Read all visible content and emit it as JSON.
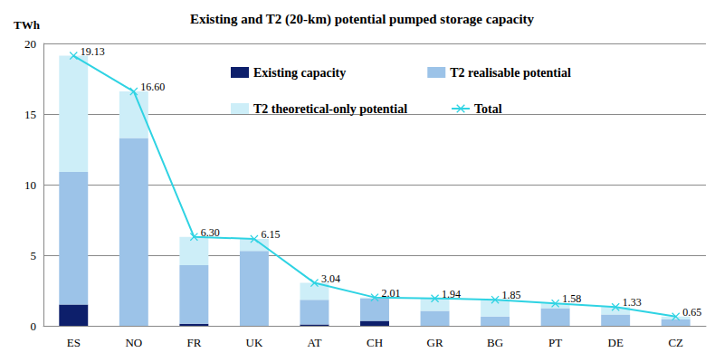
{
  "chart_data": {
    "type": "bar",
    "title": "Existing and T2 (20-km) potential pumped storage capacity",
    "y_label": "TWh",
    "categories": [
      "ES",
      "NO",
      "FR",
      "UK",
      "AT",
      "CH",
      "GR",
      "BG",
      "PT",
      "DE",
      "CZ"
    ],
    "series": [
      {
        "name": "Existing capacity",
        "type": "bar",
        "color": "#0d1f6b",
        "values": [
          1.5,
          0,
          0.15,
          0,
          0.1,
          0.35,
          0,
          0,
          0,
          0,
          0
        ]
      },
      {
        "name": "T2 realisable potential",
        "type": "bar",
        "color": "#9cc3e8",
        "values": [
          9.4,
          13.3,
          4.15,
          5.3,
          1.75,
          1.6,
          1.05,
          0.65,
          1.25,
          0.8,
          0.45
        ]
      },
      {
        "name": "T2 theoretical-only potential",
        "type": "bar",
        "color": "#cdeef8",
        "values": [
          8.23,
          3.3,
          2.0,
          0.85,
          1.19,
          0.06,
          0.89,
          1.2,
          0.33,
          0.53,
          0.2
        ]
      },
      {
        "name": "Total",
        "type": "line",
        "color": "#2fd3e3",
        "marker": "x",
        "data_labels": true,
        "values": [
          19.13,
          16.6,
          6.3,
          6.15,
          3.04,
          2.01,
          1.94,
          1.85,
          1.58,
          1.33,
          0.65
        ],
        "value_labels": [
          "19.13",
          "16.60",
          "6.30",
          "6.15",
          "3.04",
          "2.01",
          "1.94",
          "1.85",
          "1.58",
          "1.33",
          "0.65"
        ]
      }
    ],
    "ylim": [
      0,
      20
    ],
    "yticks": [
      0,
      5,
      10,
      15,
      20
    ],
    "grid": true,
    "stacked": true,
    "legend": "top-right"
  }
}
